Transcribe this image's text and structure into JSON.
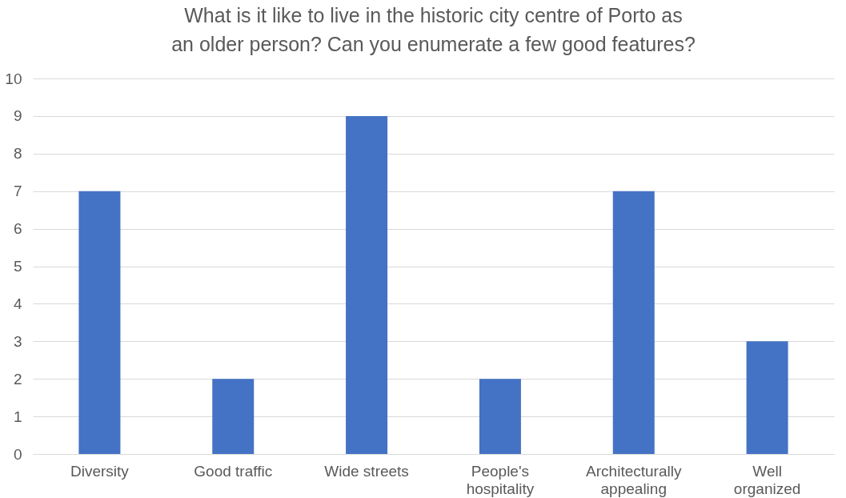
{
  "chart_data": {
    "type": "bar",
    "title": "What is it like to live in the historic city centre of Porto as an older person? Can you enumerate a few good features?",
    "categories": [
      "Diversity",
      "Good traffic",
      "Wide streets",
      "People's hospitality",
      "Architecturally appealing",
      "Well organized"
    ],
    "values": [
      7,
      2,
      9,
      2,
      7,
      3
    ],
    "color": "#4472c4",
    "ylim": [
      0,
      10
    ],
    "yticks": [
      0,
      1,
      2,
      3,
      4,
      5,
      6,
      7,
      8,
      9,
      10
    ],
    "grid": "y"
  }
}
